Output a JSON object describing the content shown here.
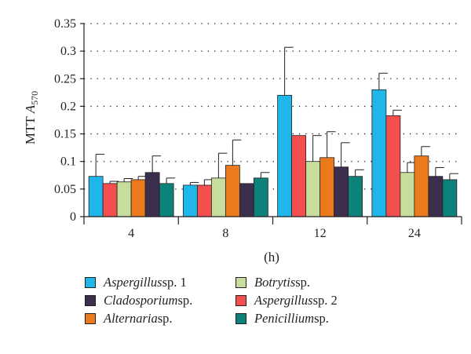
{
  "chart_data": {
    "type": "bar",
    "ylabel": "MTT A570",
    "ylabel_parts": {
      "main": "MTT ",
      "italic": "A",
      "sub": "570"
    },
    "xlabel": "(h)",
    "categories": [
      "4",
      "8",
      "12",
      "24"
    ],
    "ylim": [
      0,
      0.35
    ],
    "yticks": [
      "0",
      "0.05",
      "0.1",
      "0.15",
      "0.2",
      "0.25",
      "0.3",
      "0.35"
    ],
    "ytick_values": [
      0,
      0.05,
      0.1,
      0.15,
      0.2,
      0.25,
      0.3,
      0.35
    ],
    "grid": "horizontal dotted",
    "legend_position": "bottom",
    "series": [
      {
        "name": "Aspergillus sp. 1",
        "genus": "Aspergillus",
        "suffix": " sp. 1",
        "color": "#1fb6ea",
        "values": [
          0.073,
          0.057,
          0.22,
          0.23
        ],
        "error": [
          0.04,
          0.005,
          0.087,
          0.03
        ]
      },
      {
        "name": "Aspergillus sp. 2",
        "genus": "Aspergillus",
        "suffix": " sp. 2",
        "color": "#f34f4f",
        "values": [
          0.06,
          0.057,
          0.147,
          0.183
        ],
        "error": [
          0.004,
          0.01,
          0.0,
          0.01
        ]
      },
      {
        "name": "Botrytis sp.",
        "genus": "Botrytis",
        "suffix": " sp.",
        "color": "#c6dd9c",
        "values": [
          0.063,
          0.07,
          0.1,
          0.08
        ],
        "error": [
          0.006,
          0.045,
          0.047,
          0.018
        ]
      },
      {
        "name": "Alternaria sp.",
        "genus": "Alternaria",
        "suffix": " sp.",
        "color": "#ea7a1b",
        "values": [
          0.067,
          0.093,
          0.107,
          0.11
        ],
        "error": [
          0.006,
          0.046,
          0.047,
          0.017
        ]
      },
      {
        "name": "Cladosporium sp.",
        "genus": "Cladosporium",
        "suffix": " sp.",
        "color": "#3b2f4d",
        "values": [
          0.08,
          0.06,
          0.09,
          0.073
        ],
        "error": [
          0.03,
          0.0,
          0.044,
          0.016
        ]
      },
      {
        "name": "Penicillium sp.",
        "genus": "Penicillium",
        "suffix": " sp.",
        "color": "#0d827a",
        "values": [
          0.06,
          0.07,
          0.073,
          0.067
        ],
        "error": [
          0.01,
          0.01,
          0.012,
          0.011
        ]
      }
    ],
    "legend_order": [
      0,
      4,
      3,
      2,
      1,
      5
    ]
  }
}
